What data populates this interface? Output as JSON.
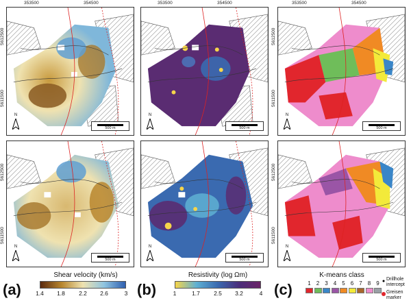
{
  "coords": {
    "x_left": "353500",
    "x_right": "354500",
    "y_top": "5612500",
    "y_bottom": "5611500"
  },
  "scale_label": "500 m",
  "north_label": "N",
  "panel_labels": {
    "a": "(a)",
    "b": "(b)",
    "c": "(c)"
  },
  "colorbar_a": {
    "title": "Shear velocity (km/s)",
    "ticks": [
      "1.4",
      "1.8",
      "2.2",
      "2.6",
      "3"
    ],
    "colors": [
      "#5a2a10",
      "#b8862e",
      "#efe2b0",
      "#8fc4e0",
      "#2f5fb0"
    ]
  },
  "colorbar_b": {
    "title": "Resistivity (log Ωm)",
    "ticks": [
      "1",
      "1.7",
      "2.5",
      "3.2",
      "4"
    ],
    "colors": [
      "#f6d54a",
      "#5fb0d3",
      "#3a6ab0",
      "#4a2d7a",
      "#6b2466"
    ]
  },
  "kmeans": {
    "title": "K-means class",
    "classes": [
      "1",
      "2",
      "3",
      "4",
      "5",
      "6",
      "7",
      "8",
      "9"
    ],
    "colors": [
      "#e1262d",
      "#6fbd5a",
      "#3a86c8",
      "#9a55a6",
      "#f08a24",
      "#f3ea3a",
      "#a8672c",
      "#ee8ccc",
      "#9aa0a6"
    ]
  },
  "legend": {
    "drillhole": "Drillhole intercept",
    "greisen": "Greisen marker"
  }
}
